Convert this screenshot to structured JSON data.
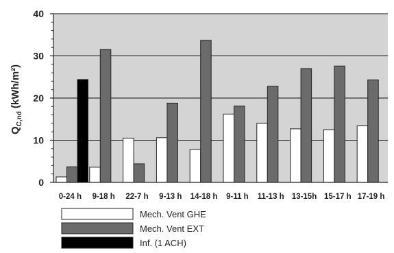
{
  "chart_data": {
    "type": "bar",
    "categories": [
      "0-24 h",
      "9-18 h",
      "22-7 h",
      "9-13 h",
      "14-18 h",
      "9-11 h",
      "11-13 h",
      "13-15h",
      "15-17 h",
      "17-19 h"
    ],
    "series": [
      {
        "name": "Mech. Vent GHE",
        "color": "#ffffff",
        "values": [
          1.3,
          3.6,
          10.5,
          10.6,
          7.8,
          16.2,
          14.0,
          12.7,
          12.5,
          13.4
        ]
      },
      {
        "name": "Mech. Vent EXT",
        "color": "#6b6b6b",
        "values": [
          3.7,
          31.5,
          4.4,
          18.8,
          33.7,
          18.1,
          22.8,
          27.0,
          27.6,
          24.3
        ]
      },
      {
        "name": "Inf. (1 ACH)",
        "color": "#000000",
        "values": [
          24.4,
          null,
          null,
          null,
          null,
          null,
          null,
          null,
          null,
          null
        ]
      }
    ],
    "ylabel_main": "Q",
    "ylabel_sub": "C,nd",
    "ylabel_unit": "(kWh/m²)",
    "ylim": [
      0,
      40
    ],
    "yticks": [
      0,
      10,
      20,
      30,
      40
    ],
    "grid": true,
    "plot_background": "#d4d4d4",
    "legend_position": "bottom-left"
  }
}
